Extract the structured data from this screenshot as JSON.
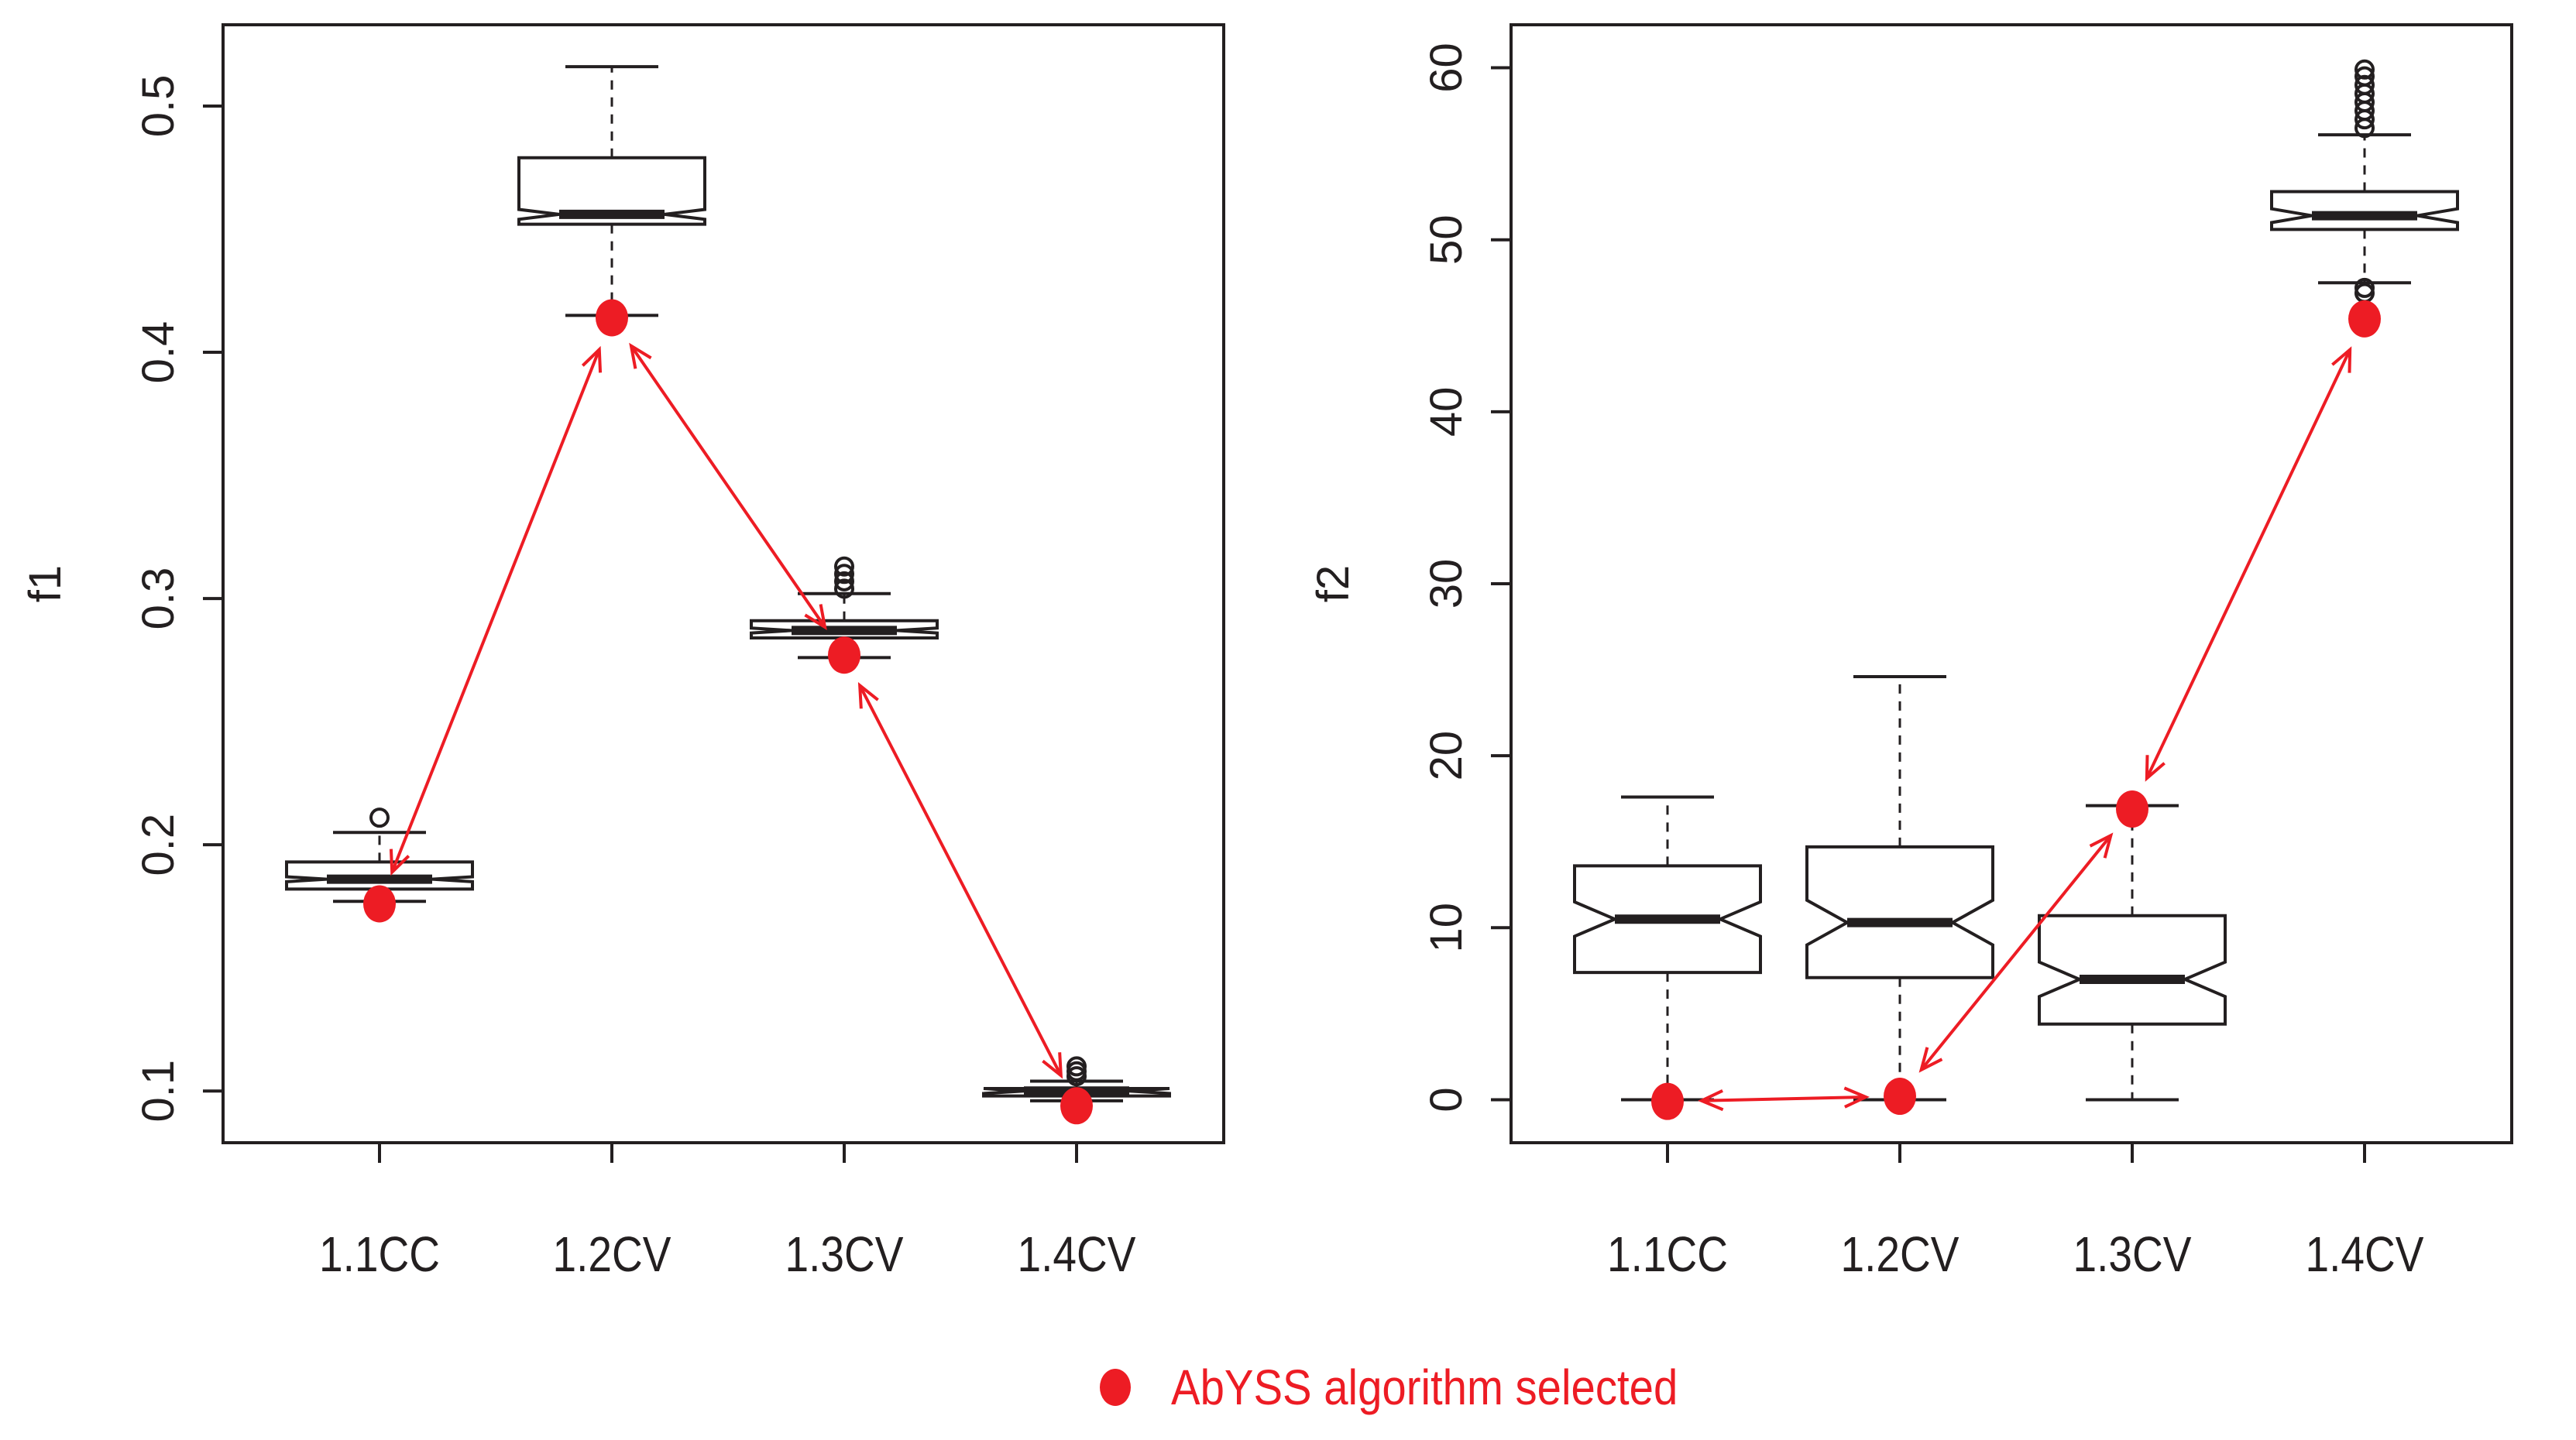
{
  "colors": {
    "axis": "#231f20",
    "highlight": "#ed1c24",
    "background": "#ffffff"
  },
  "chart_data": [
    {
      "type": "boxplot",
      "ylabel": "f1",
      "categories": [
        "1.1CC",
        "1.2CV",
        "1.3CV",
        "1.4CV"
      ],
      "ylim": [
        0.079,
        0.533
      ],
      "yticks": [
        0.1,
        0.2,
        0.3,
        0.4,
        0.5
      ],
      "ytick_labels": [
        "0.1",
        "0.2",
        "0.3",
        "0.4",
        "0.5"
      ],
      "notched": true,
      "boxes": [
        {
          "category": "1.1CC",
          "whisker_low": 0.177,
          "q1": 0.182,
          "median": 0.186,
          "q3": 0.193,
          "whisker_high": 0.205,
          "notch_low": 0.185,
          "notch_high": 0.187,
          "outliers": [
            0.211
          ]
        },
        {
          "category": "1.2CV",
          "whisker_low": 0.415,
          "q1": 0.452,
          "median": 0.456,
          "q3": 0.479,
          "whisker_high": 0.516,
          "notch_low": 0.454,
          "notch_high": 0.458,
          "outliers": []
        },
        {
          "category": "1.3CV",
          "whisker_low": 0.276,
          "q1": 0.284,
          "median": 0.287,
          "q3": 0.291,
          "whisker_high": 0.302,
          "notch_low": 0.286,
          "notch_high": 0.288,
          "outliers": [
            0.304,
            0.307,
            0.31,
            0.313
          ]
        },
        {
          "category": "1.4CV",
          "whisker_low": 0.096,
          "q1": 0.098,
          "median": 0.1,
          "q3": 0.101,
          "whisker_high": 0.104,
          "notch_low": 0.099,
          "notch_high": 0.101,
          "outliers": [
            0.106,
            0.108,
            0.11
          ]
        }
      ],
      "selected": [
        {
          "category": "1.1CC",
          "value": 0.176
        },
        {
          "category": "1.2CV",
          "value": 0.414
        },
        {
          "category": "1.3CV",
          "value": 0.277
        },
        {
          "category": "1.4CV",
          "value": 0.094
        }
      ],
      "connections": [
        [
          "1.1CC",
          "1.2CV"
        ],
        [
          "1.2CV",
          "1.3CV"
        ],
        [
          "1.3CV",
          "1.4CV"
        ]
      ]
    },
    {
      "type": "boxplot",
      "ylabel": "f2",
      "categories": [
        "1.1CC",
        "1.2CV",
        "1.3CV",
        "1.4CV"
      ],
      "ylim": [
        -2.5,
        62.5
      ],
      "yticks": [
        0,
        10,
        20,
        30,
        40,
        50,
        60
      ],
      "ytick_labels": [
        "0",
        "10",
        "20",
        "30",
        "40",
        "50",
        "60"
      ],
      "notched": true,
      "boxes": [
        {
          "category": "1.1CC",
          "whisker_low": 0,
          "q1": 7.4,
          "median": 10.5,
          "q3": 13.6,
          "whisker_high": 17.6,
          "notch_low": 9.5,
          "notch_high": 11.5,
          "outliers": []
        },
        {
          "category": "1.2CV",
          "whisker_low": 0,
          "q1": 7.1,
          "median": 10.3,
          "q3": 14.7,
          "whisker_high": 24.6,
          "notch_low": 9.0,
          "notch_high": 11.6,
          "outliers": []
        },
        {
          "category": "1.3CV",
          "whisker_low": 0,
          "q1": 4.4,
          "median": 7.0,
          "q3": 10.7,
          "whisker_high": 17.1,
          "notch_low": 6.0,
          "notch_high": 8.0,
          "outliers": []
        },
        {
          "category": "1.4CV",
          "whisker_low": 47.5,
          "q1": 50.6,
          "median": 51.4,
          "q3": 52.8,
          "whisker_high": 56.1,
          "notch_low": 51.0,
          "notch_high": 51.8,
          "outliers": [
            46.9,
            47.2,
            56.5,
            57.0,
            57.5,
            58.0,
            58.5,
            59.0,
            59.5,
            59.9
          ]
        }
      ],
      "selected": [
        {
          "category": "1.1CC",
          "value": -0.1
        },
        {
          "category": "1.2CV",
          "value": 0.2
        },
        {
          "category": "1.3CV",
          "value": 16.9
        },
        {
          "category": "1.4CV",
          "value": 45.4
        }
      ],
      "connections": [
        [
          "1.1CC",
          "1.2CV"
        ],
        [
          "1.2CV",
          "1.3CV"
        ],
        [
          "1.3CV",
          "1.4CV"
        ]
      ]
    }
  ],
  "legend": {
    "label": "AbYSS algorithm selected"
  }
}
